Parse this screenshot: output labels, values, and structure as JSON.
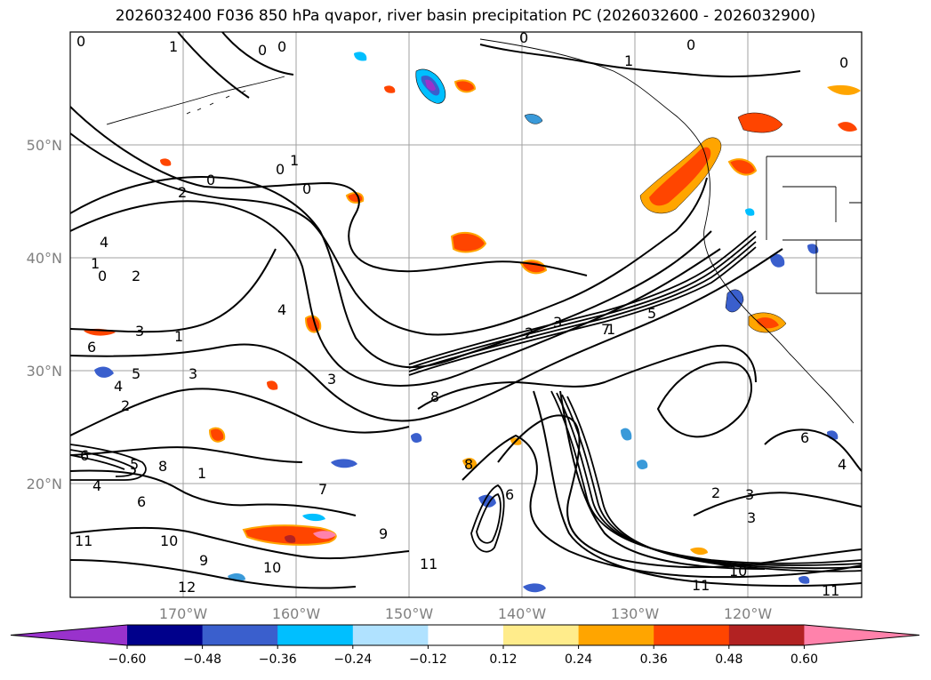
{
  "title": "2026032400 F036 850 hPa qvapor, river basin precipitation PC (2026032600 - 2026032900)",
  "map": {
    "lat_labels": [
      "50°N",
      "40°N",
      "30°N",
      "20°N"
    ],
    "lon_labels": [
      "170°W",
      "160°W",
      "150°W",
      "140°W",
      "130°W",
      "120°W"
    ],
    "contour_labels": [
      "0",
      "1",
      "0",
      "0",
      "0",
      "1",
      "0",
      "0",
      "1",
      "2",
      "0",
      "0",
      "0",
      "4",
      "1",
      "0",
      "2",
      "4",
      "3",
      "1",
      "6",
      "3",
      "5",
      "4",
      "2",
      "3",
      "6",
      "5",
      "4",
      "8",
      "1",
      "6",
      "8",
      "7",
      "10",
      "9",
      "11",
      "10",
      "12",
      "9",
      "11",
      "8",
      "6",
      "1",
      "3",
      "2",
      "3",
      "6",
      "4",
      "10",
      "11",
      "11",
      "3",
      "5",
      "7",
      "2"
    ]
  },
  "colorbar": {
    "ticks": [
      "−0.60",
      "−0.48",
      "−0.36",
      "−0.24",
      "−0.12",
      "0.12",
      "0.24",
      "0.36",
      "0.48",
      "0.60"
    ],
    "colors": [
      "#9932cc",
      "#00008b",
      "#3a5fcd",
      "#00bfff",
      "#b0e2ff",
      "#ffffff",
      "#ffec8b",
      "#ffa500",
      "#ff4500",
      "#b22222",
      "#ff82ab"
    ]
  }
}
